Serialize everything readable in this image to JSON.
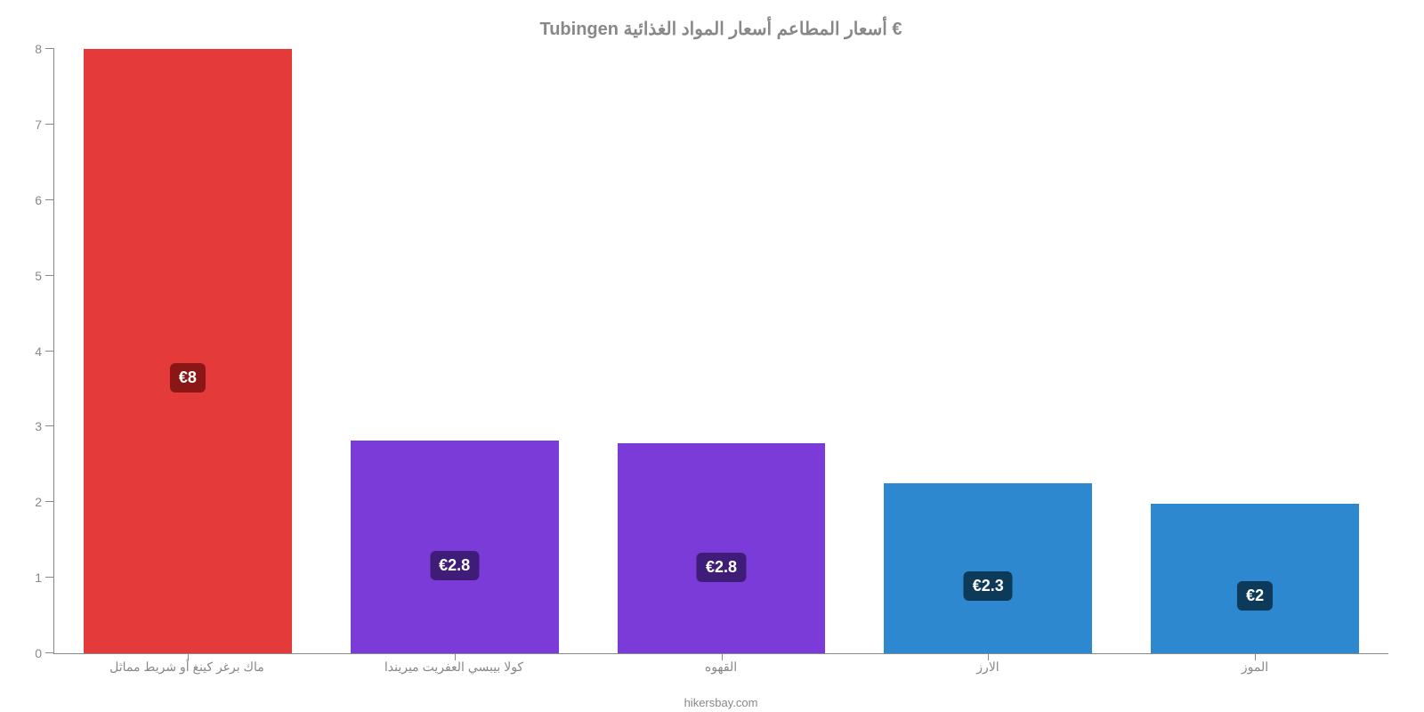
{
  "chart": {
    "type": "bar",
    "title": "Tubingen أسعار المطاعم أسعار المواد الغذائية €",
    "title_fontsize": 20,
    "title_color": "#888888",
    "background_color": "#ffffff",
    "axis_color": "#888888",
    "tick_label_color": "#888888",
    "tick_fontsize": 14,
    "ylim": [
      0,
      8
    ],
    "ytick_step": 1,
    "yticks": [
      "0",
      "1",
      "2",
      "3",
      "4",
      "5",
      "6",
      "7",
      "8"
    ],
    "bar_width": 0.78,
    "categories": [
      "ماك برغر كينغ أو شريط مماثل",
      "كولا بيبسي العفريت ميريندا",
      "القهوه",
      "الارز",
      "الموز"
    ],
    "values": [
      8,
      2.82,
      2.78,
      2.25,
      1.98
    ],
    "value_labels": [
      "€8",
      "€2.8",
      "€2.8",
      "€2.3",
      "€2"
    ],
    "bar_colors": [
      "#e43a3a",
      "#7a3bd8",
      "#7a3bd8",
      "#2e88d0",
      "#2e88d0"
    ],
    "badge_colors": [
      "#8a1616",
      "#3f1c78",
      "#3f1c78",
      "#0e3a5a",
      "#0e3a5a"
    ],
    "badge_text_color": "#ffffff",
    "badge_fontsize": 18,
    "footer": "hikersbay.com",
    "footer_color": "#888888",
    "footer_fontsize": 13
  }
}
